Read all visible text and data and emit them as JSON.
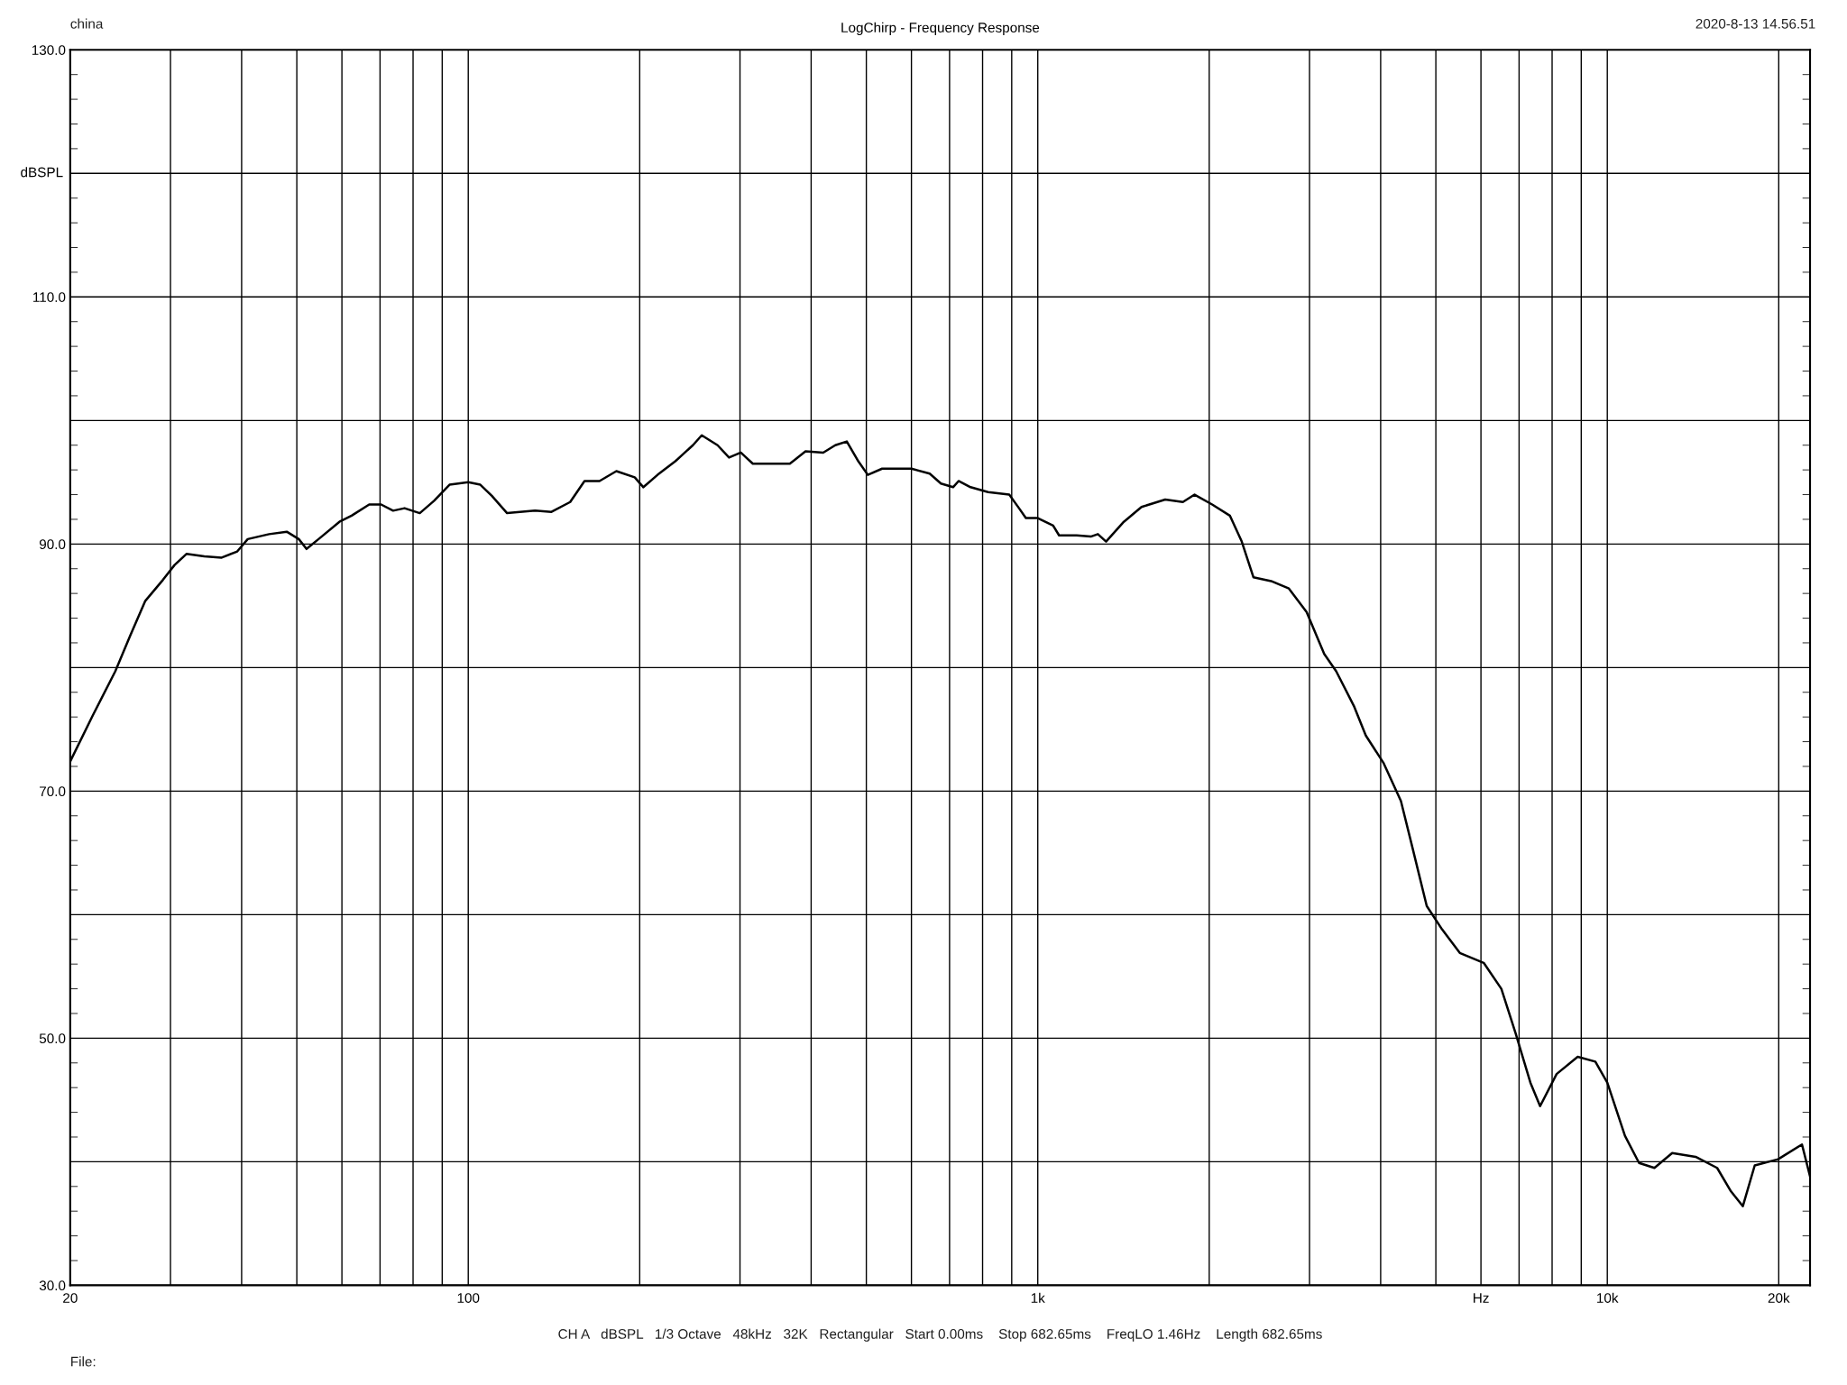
{
  "chart_data": {
    "type": "line",
    "title": "LogChirp - Frequency Response",
    "ylabel": "dBSPL",
    "annotations": [
      "china",
      "2020-8-13 14.56.51",
      "CH A   dBSPL   1/3 Octave   48kHz   32K   Rectangular   Start 0.00ms    Stop 682.65ms    FreqLO 1.46Hz    Length 682.65ms",
      "File:"
    ],
    "log": "x",
    "grid": true,
    "legend": false,
    "marker": "none",
    "line_style": "solid",
    "xlim": [
      20,
      22700
    ],
    "ylim": [
      30,
      130
    ],
    "xticks": [
      20,
      {
        "value": 30,
        "label": null
      },
      {
        "value": 40,
        "label": null
      },
      {
        "value": 50,
        "label": null
      },
      {
        "value": 60,
        "label": null
      },
      {
        "value": 70,
        "label": null
      },
      {
        "value": 80,
        "label": null
      },
      {
        "value": 90,
        "label": null
      },
      100,
      {
        "value": 200,
        "label": null
      },
      {
        "value": 300,
        "label": null
      },
      {
        "value": 400,
        "label": null
      },
      {
        "value": 500,
        "label": null
      },
      {
        "value": 600,
        "label": null
      },
      {
        "value": 700,
        "label": null
      },
      {
        "value": 800,
        "label": null
      },
      {
        "value": 900,
        "label": null
      },
      {
        "value": 1000,
        "label": "1k"
      },
      {
        "value": 2000,
        "label": null
      },
      {
        "value": 3000,
        "label": null
      },
      {
        "value": 4000,
        "label": null
      },
      {
        "value": 5000,
        "label": null
      },
      {
        "value": 6000,
        "label": "Hz"
      },
      {
        "value": 7000,
        "label": null
      },
      {
        "value": 8000,
        "label": null
      },
      {
        "value": 9000,
        "label": null
      },
      {
        "value": 10000,
        "label": "10k"
      },
      {
        "value": 20000,
        "label": "20k"
      }
    ],
    "yticks": [
      {
        "value": 30,
        "label": "30.0"
      },
      {
        "value": 40,
        "label": null
      },
      {
        "value": 50,
        "label": "50.0"
      },
      {
        "value": 60,
        "label": null
      },
      {
        "value": 70,
        "label": "70.0"
      },
      {
        "value": 80,
        "label": null
      },
      {
        "value": 90,
        "label": "90.0"
      },
      {
        "value": 100,
        "label": null
      },
      {
        "value": 110,
        "label": "110.0"
      },
      {
        "value": 120,
        "label": null
      },
      {
        "value": 130,
        "label": "130.0"
      }
    ],
    "series": [
      {
        "color": "#000000",
        "x": [
          20,
          21.9,
          24.0,
          25.5,
          27.1,
          29.1,
          30.5,
          32.0,
          34.4,
          36.9,
          39.3,
          41.0,
          44.7,
          48.0,
          50.4,
          52.0,
          54.6,
          59.4,
          62.4,
          67.0,
          70.3,
          73.8,
          77.3,
          82.2,
          87.1,
          92.7,
          100,
          105,
          110,
          117,
          131,
          140,
          151,
          160,
          170,
          182,
          196,
          203,
          215,
          231,
          248,
          257,
          274,
          287,
          301,
          316,
          339,
          367,
          391,
          420,
          441,
          462,
          484,
          503,
          533,
          559,
          600,
          646,
          676,
          710,
          726,
          762,
          818,
          891,
          927,
          953,
          1000,
          1064,
          1090,
          1170,
          1239,
          1275,
          1318,
          1416,
          1521,
          1674,
          1798,
          1885,
          2024,
          2174,
          2281,
          2392,
          2569,
          2760,
          2965,
          3184,
          3342,
          3589,
          3767,
          4044,
          4341,
          4550,
          4819,
          5129,
          5508,
          6067,
          6516,
          6902,
          7328,
          7621,
          8147,
          8872,
          9528,
          10000,
          10740,
          11370,
          12100,
          13000,
          14290,
          15590,
          16490,
          17300,
          18150,
          19950,
          21970,
          22700
        ],
        "values": [
          72.4,
          76.1,
          79.7,
          82.6,
          85.4,
          87.1,
          88.3,
          89.2,
          89.0,
          88.9,
          89.4,
          90.4,
          90.8,
          91.0,
          90.4,
          89.6,
          90.4,
          91.8,
          92.3,
          93.2,
          93.2,
          92.7,
          92.9,
          92.5,
          93.5,
          94.8,
          95.0,
          94.8,
          93.9,
          92.5,
          92.7,
          92.6,
          93.4,
          95.1,
          95.1,
          95.9,
          95.4,
          94.6,
          95.6,
          96.7,
          98.0,
          98.8,
          98.0,
          97.0,
          97.4,
          96.5,
          96.5,
          96.5,
          97.5,
          97.4,
          98.0,
          98.3,
          96.7,
          95.6,
          96.1,
          96.1,
          96.1,
          95.7,
          94.9,
          94.6,
          95.1,
          94.6,
          94.2,
          94.0,
          92.9,
          92.1,
          92.1,
          91.5,
          90.7,
          90.7,
          90.6,
          90.8,
          90.2,
          91.8,
          93.0,
          93.6,
          93.4,
          94.0,
          93.2,
          92.3,
          90.2,
          87.3,
          87.0,
          86.4,
          84.5,
          81.1,
          79.7,
          76.9,
          74.5,
          72.3,
          69.2,
          65.4,
          60.7,
          58.8,
          56.9,
          56.1,
          54.0,
          50.4,
          46.4,
          44.5,
          47.1,
          48.5,
          48.1,
          46.4,
          42.1,
          39.9,
          39.5,
          40.7,
          40.4,
          39.5,
          37.6,
          36.4,
          39.7,
          40.2,
          41.4,
          38.8
        ]
      }
    ]
  }
}
